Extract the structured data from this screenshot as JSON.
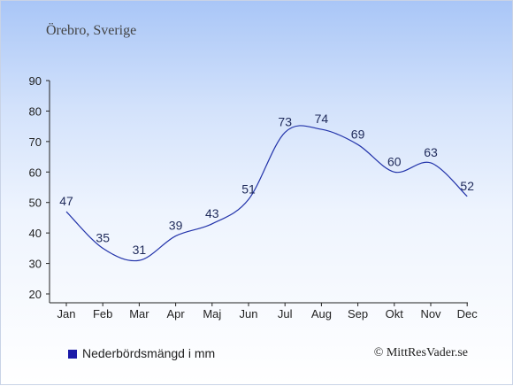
{
  "header": {
    "location": "Örebro, Sverige"
  },
  "footer": {
    "legend_label": "Nederbördsmängd i mm",
    "copyright": "© MittResVader.se"
  },
  "colors": {
    "line": "#2233aa",
    "text": "#222222",
    "legend_swatch": "#1a1aa8"
  },
  "chart_data": {
    "type": "line",
    "categories": [
      "Jan",
      "Feb",
      "Mar",
      "Apr",
      "Maj",
      "Jun",
      "Jul",
      "Aug",
      "Sep",
      "Okt",
      "Nov",
      "Dec"
    ],
    "series": [
      {
        "name": "Nederbördsmängd i mm",
        "values": [
          47,
          35,
          31,
          39,
          43,
          51,
          73,
          74,
          69,
          60,
          63,
          52
        ]
      }
    ],
    "yticks": [
      20,
      30,
      40,
      50,
      60,
      70,
      80,
      90
    ],
    "ylim": [
      20,
      90
    ],
    "grid": false,
    "legend_position": "bottom-left",
    "data_labels": true
  }
}
